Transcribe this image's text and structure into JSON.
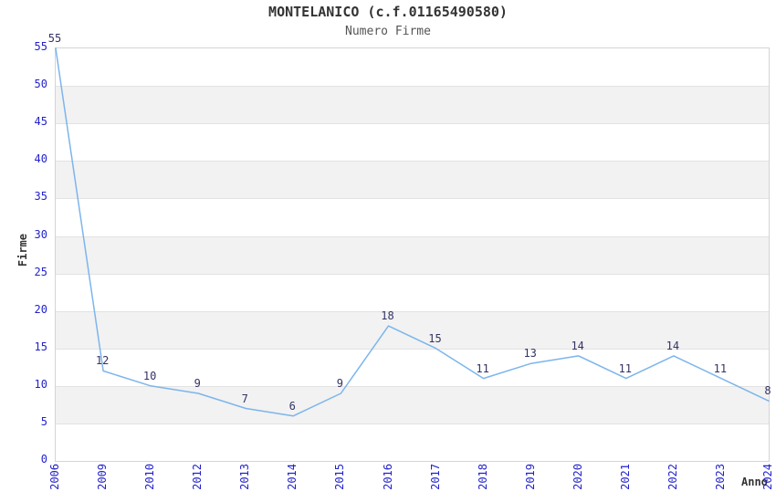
{
  "chart_data": {
    "type": "line",
    "title": "MONTELANICO (c.f.01165490580)",
    "subtitle": "Numero Firme",
    "xlabel": "Anno",
    "ylabel": "Firme",
    "categories": [
      "2006",
      "2009",
      "2010",
      "2012",
      "2013",
      "2014",
      "2015",
      "2016",
      "2017",
      "2018",
      "2019",
      "2020",
      "2021",
      "2022",
      "2023",
      "2024"
    ],
    "values": [
      55,
      12,
      10,
      9,
      7,
      6,
      9,
      18,
      15,
      11,
      13,
      14,
      11,
      14,
      11,
      8
    ],
    "ylim": [
      0,
      55
    ],
    "ytick_step": 5,
    "grid": "horizontal",
    "banding": "alternating-horizontal",
    "legend": "none",
    "data_labels": "above-points",
    "colors": {
      "line": "#7cb5ec",
      "tick_label": "#2222cc",
      "data_label": "#333366",
      "band": "#f2f2f2",
      "gridline": "#e2e2e2",
      "plot_border": "#d4d4d4",
      "title": "#333333",
      "subtitle": "#555555",
      "axis_title": "#333333"
    }
  }
}
